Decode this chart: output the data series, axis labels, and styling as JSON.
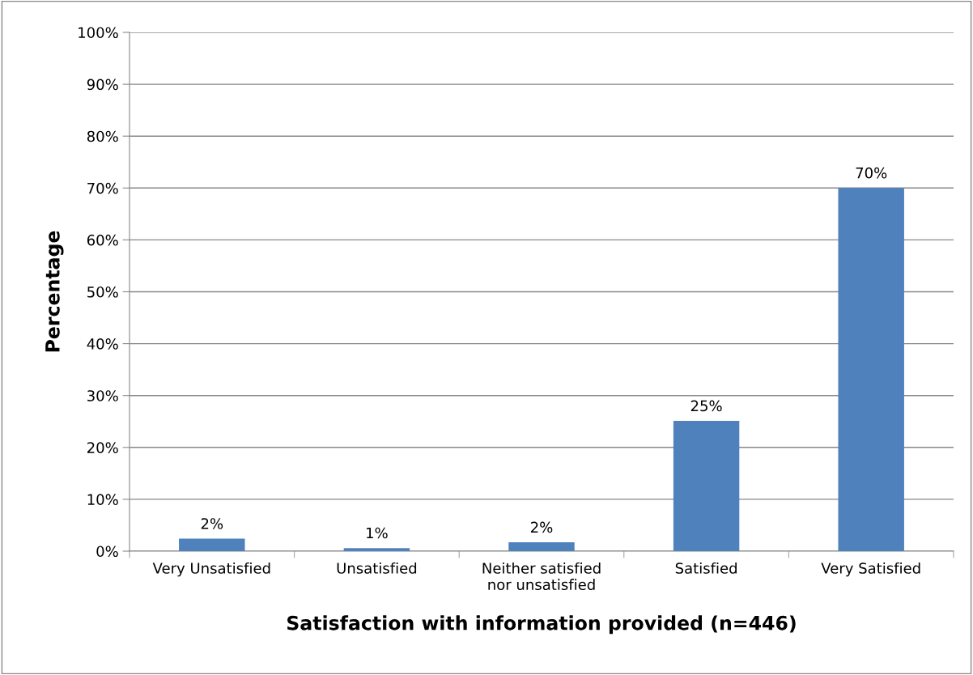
{
  "chart_data": {
    "type": "bar",
    "xlabel": "Satisfaction with information provided (n=446)",
    "ylabel": "Percentage",
    "categories": [
      "Very Unsatisfied",
      "Unsatisfied",
      "Neither satisfied\nnor unsatisfied",
      "Satisfied",
      "Very Satisfied"
    ],
    "values": [
      2.4,
      0.6,
      1.7,
      25.1,
      70
    ],
    "value_labels": [
      "2%",
      "1%",
      "2%",
      "25%",
      "70%"
    ],
    "color": "#4f81bd",
    "ylim": [
      0,
      100
    ],
    "yticks": [
      {
        "value": 0,
        "label": "0%"
      },
      {
        "value": 10,
        "label": "10%"
      },
      {
        "value": 20,
        "label": "20%"
      },
      {
        "value": 30,
        "label": "30%"
      },
      {
        "value": 40,
        "label": "40%"
      },
      {
        "value": 50,
        "label": "50%"
      },
      {
        "value": 60,
        "label": "60%"
      },
      {
        "value": 70,
        "label": "70%"
      },
      {
        "value": 80,
        "label": "80%"
      },
      {
        "value": 90,
        "label": "90%"
      },
      {
        "value": 100,
        "label": "100%"
      }
    ],
    "grid": "y",
    "legend": false
  }
}
